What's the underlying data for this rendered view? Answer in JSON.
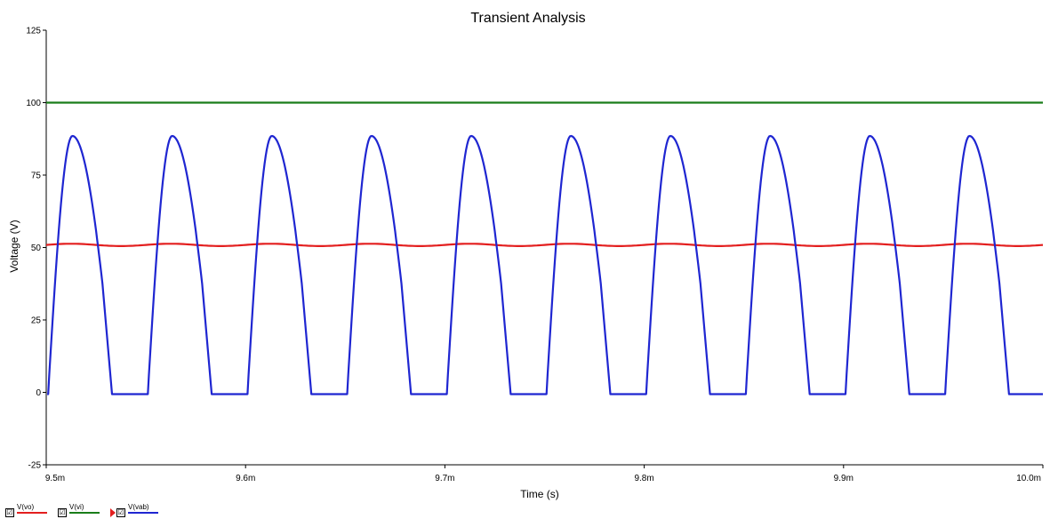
{
  "chart_data": {
    "type": "line",
    "title": "Transient Analysis",
    "xlabel": "Time (s)",
    "ylabel": "Voltage (V)",
    "xlim": [
      0.0095,
      0.01
    ],
    "ylim": [
      -25,
      125
    ],
    "x_ticks": [
      {
        "value": 0.0095,
        "label": "9.5m"
      },
      {
        "value": 0.0096,
        "label": "9.6m"
      },
      {
        "value": 0.0097,
        "label": "9.7m"
      },
      {
        "value": 0.0098,
        "label": "9.8m"
      },
      {
        "value": 0.0099,
        "label": "9.9m"
      },
      {
        "value": 0.01,
        "label": "10.0m"
      }
    ],
    "y_ticks": [
      {
        "value": -25,
        "label": "-25"
      },
      {
        "value": 0,
        "label": "0"
      },
      {
        "value": 25,
        "label": "25"
      },
      {
        "value": 50,
        "label": "50"
      },
      {
        "value": 75,
        "label": "75"
      },
      {
        "value": 100,
        "label": "100"
      },
      {
        "value": 125,
        "label": "125"
      }
    ],
    "grid": false,
    "legend_position": "bottom-left",
    "series": [
      {
        "name": "V(vo)",
        "color": "#e31e1e",
        "style": "dc_ripple",
        "value": 50.9,
        "ripple": 0.4
      },
      {
        "name": "V(vi)",
        "color": "#1a7d1a",
        "style": "constant",
        "value": 100
      },
      {
        "name": "V(vab)",
        "color": "#1f26d1",
        "style": "pulse_train",
        "period": 5e-05,
        "start": 0.009501,
        "on_duration": 3.2e-05,
        "peak": 88.5,
        "low": -0.6,
        "pulses": 10
      }
    ]
  },
  "legend": {
    "items": [
      {
        "label": "V(vo)",
        "color": "#e31e1e",
        "checked": "☑"
      },
      {
        "label": "V(vi)",
        "color": "#1a7d1a",
        "checked": "☑"
      },
      {
        "label": "V(vab)",
        "color": "#1f26d1",
        "checked": "☑"
      }
    ]
  }
}
